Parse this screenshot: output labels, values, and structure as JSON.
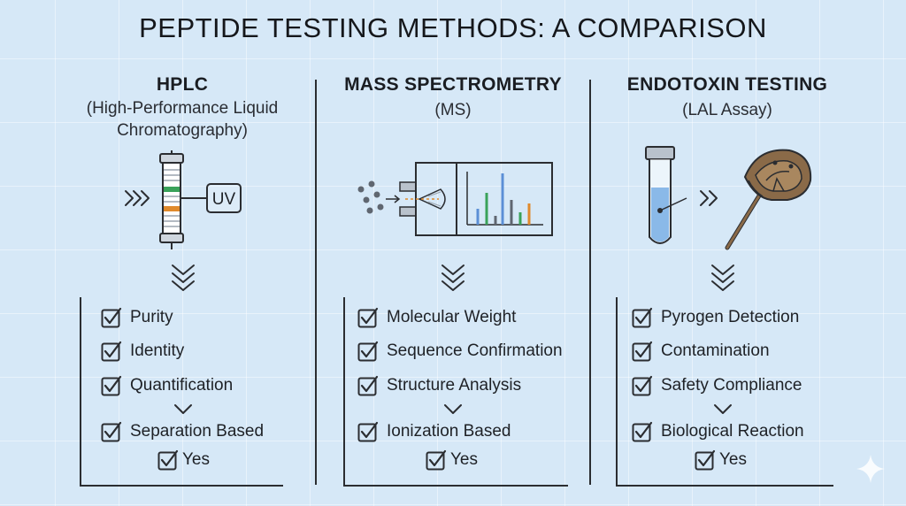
{
  "title": "PEPTIDE TESTING METHODS: A COMPARISON",
  "columns": [
    {
      "heading": "HPLC",
      "subtitle_lines": [
        "(High-Performance Liquid",
        "Chromatography)"
      ],
      "detector_label": "UV",
      "items": [
        "Purity",
        "Identity",
        "Quantification",
        "Separation Based"
      ],
      "result": "Yes"
    },
    {
      "heading": "MASS SPECTROMETRY",
      "subtitle_lines": [
        "(MS)"
      ],
      "items": [
        "Molecular Weight",
        "Sequence Confirmation",
        "Structure Analysis",
        "Ionization Based"
      ],
      "result": "Yes"
    },
    {
      "heading": "ENDOTOXIN TESTING",
      "subtitle_lines": [
        "(LAL Assay)"
      ],
      "items": [
        "Pyrogen Detection",
        "Contamination",
        "Safety Compliance",
        "Biological Reaction"
      ],
      "result": "Yes"
    }
  ],
  "colors": {
    "background": "#d6e8f7",
    "ink": "#1a1d22",
    "accent_green": "#3aa25a",
    "accent_orange": "#e08a2c",
    "accent_blue": "#5b8fd6",
    "liquid_blue": "#8ab9e8",
    "crab_brown": "#8a6a48"
  },
  "icons": [
    "checkbox-icon",
    "chevron-down-icon",
    "test-tube-icon",
    "horseshoe-crab-icon",
    "chromatography-column-icon",
    "mass-spectrometer-icon"
  ]
}
